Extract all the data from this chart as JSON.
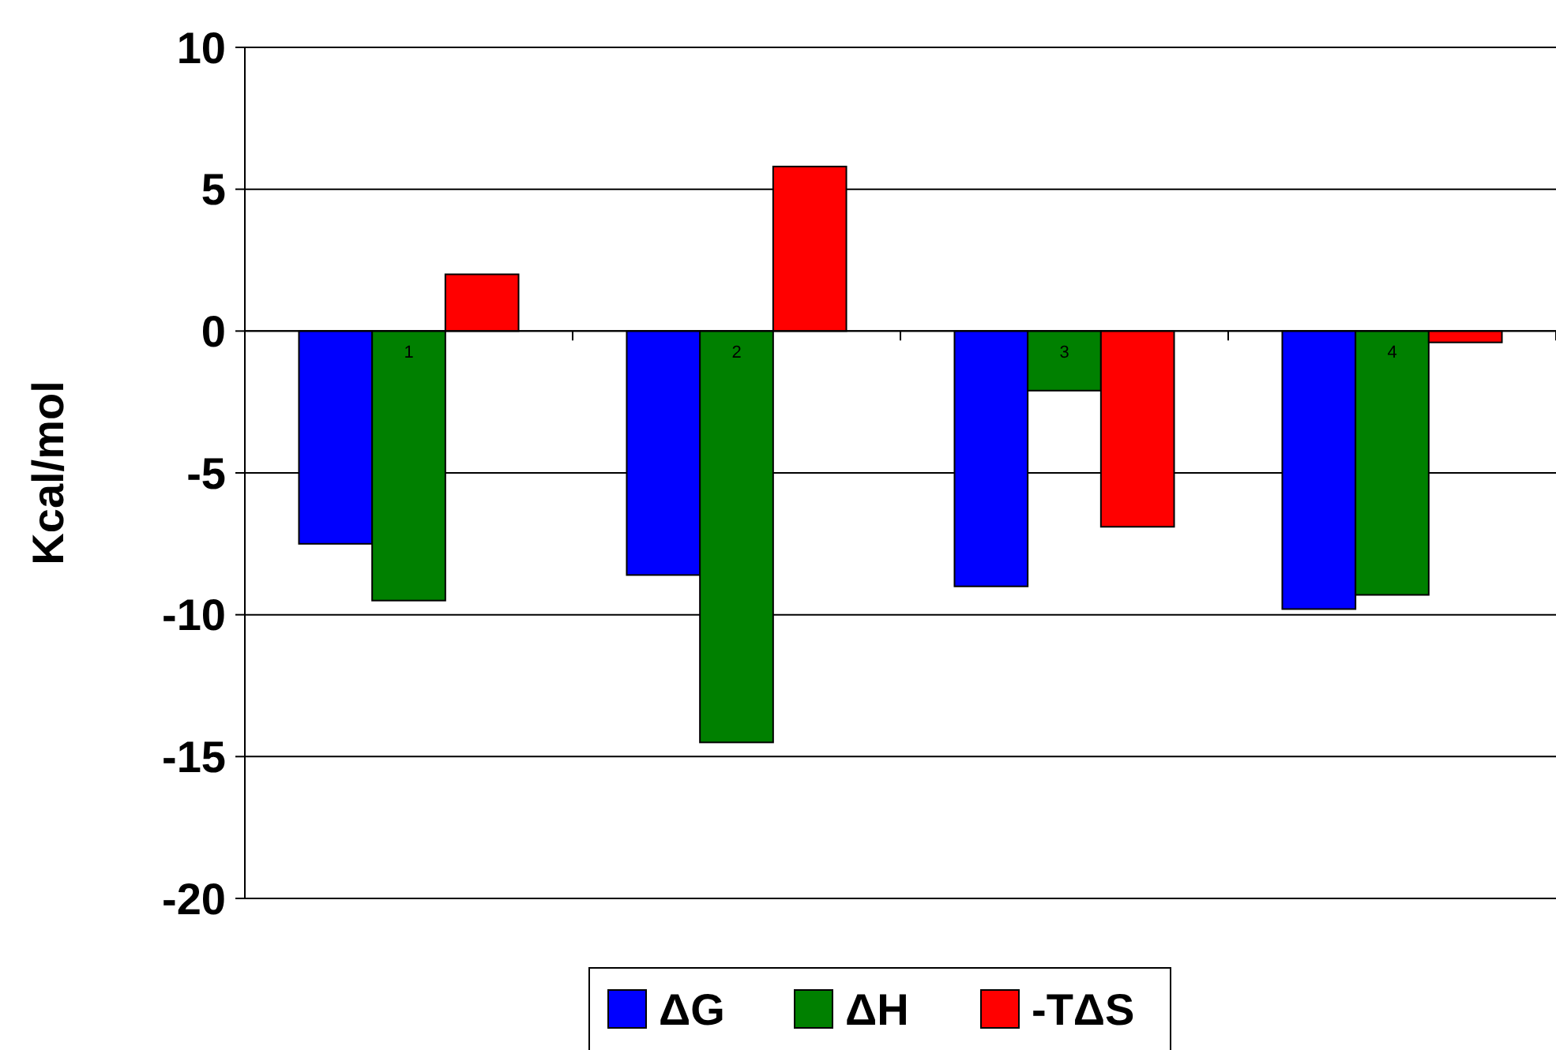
{
  "chart_data": {
    "type": "bar",
    "ylabel": "Kcal/mol",
    "categories": [
      "1",
      "2",
      "3",
      "4"
    ],
    "series": [
      {
        "name": "ΔG",
        "color": "#0000ff",
        "values": [
          -7.5,
          -8.6,
          -9.0,
          -9.8
        ]
      },
      {
        "name": "ΔH",
        "color": "#008000",
        "values": [
          -9.5,
          -14.5,
          -2.1,
          -9.3
        ]
      },
      {
        "name": "-TΔS",
        "color": "#ff0000",
        "values": [
          2.0,
          5.8,
          -6.9,
          -0.4
        ]
      }
    ],
    "ylim": [
      -20,
      10
    ],
    "yticks": [
      -20,
      -15,
      -10,
      -5,
      0,
      5,
      10
    ],
    "grid": "y",
    "legend": "bottom"
  }
}
